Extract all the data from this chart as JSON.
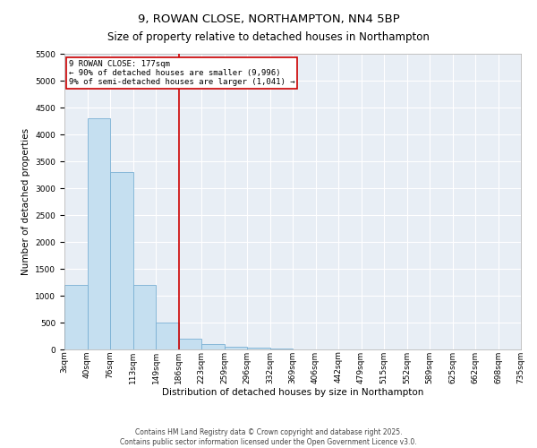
{
  "title": "9, ROWAN CLOSE, NORTHAMPTON, NN4 5BP",
  "subtitle": "Size of property relative to detached houses in Northampton",
  "xlabel": "Distribution of detached houses by size in Northampton",
  "ylabel": "Number of detached properties",
  "footer1": "Contains HM Land Registry data © Crown copyright and database right 2025.",
  "footer2": "Contains public sector information licensed under the Open Government Licence v3.0.",
  "bin_labels": [
    "3sqm",
    "40sqm",
    "76sqm",
    "113sqm",
    "149sqm",
    "186sqm",
    "223sqm",
    "259sqm",
    "296sqm",
    "332sqm",
    "369sqm",
    "406sqm",
    "442sqm",
    "479sqm",
    "515sqm",
    "552sqm",
    "589sqm",
    "625sqm",
    "662sqm",
    "698sqm",
    "735sqm"
  ],
  "bar_values": [
    1200,
    4300,
    3300,
    1200,
    500,
    200,
    100,
    50,
    30,
    15,
    8,
    4,
    2,
    1,
    1,
    0,
    0,
    0,
    0,
    0
  ],
  "bar_color": "#c5dff0",
  "bar_edge_color": "#7ab0d4",
  "vline_color": "#cc0000",
  "ylim": [
    0,
    5500
  ],
  "yticks": [
    0,
    500,
    1000,
    1500,
    2000,
    2500,
    3000,
    3500,
    4000,
    4500,
    5000,
    5500
  ],
  "annotation_text": "9 ROWAN CLOSE: 177sqm\n← 90% of detached houses are smaller (9,996)\n9% of semi-detached houses are larger (1,041) →",
  "annotation_box_color": "#cc0000",
  "plot_bg_color": "#e8eef5",
  "title_fontsize": 9.5,
  "subtitle_fontsize": 8.5,
  "axis_fontsize": 7.5,
  "tick_fontsize": 6.5,
  "footer_fontsize": 5.5,
  "annot_fontsize": 6.5
}
